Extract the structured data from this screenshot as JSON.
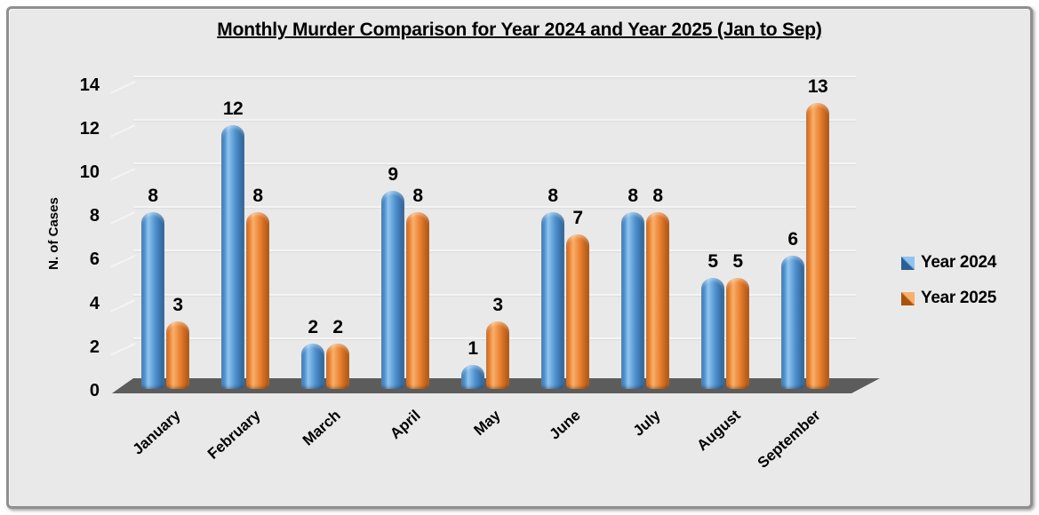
{
  "chart_data": {
    "type": "bar",
    "bar_style": "3d-cylinder",
    "title": "Monthly Murder Comparison for Year 2024 and Year 2025 (Jan to Sep)",
    "ylabel": "N. of Cases",
    "xlabel": "",
    "categories": [
      "January",
      "February",
      "March",
      "April",
      "May",
      "June",
      "July",
      "August",
      "September"
    ],
    "series": [
      {
        "name": "Year 2024",
        "values": [
          8,
          12,
          2,
          9,
          1,
          8,
          8,
          5,
          6
        ],
        "color": "#4e8ecb",
        "gradient": [
          "#3f7ab1",
          "#8ec4ef",
          "#4e8ecb",
          "#2b5f93"
        ]
      },
      {
        "name": "Year 2025",
        "values": [
          3,
          8,
          2,
          8,
          3,
          7,
          8,
          5,
          13
        ],
        "color": "#e87d2e",
        "gradient": [
          "#c96a1e",
          "#f8b06a",
          "#e87d2e",
          "#a85210"
        ]
      }
    ],
    "ylim": [
      0,
      14
    ],
    "yticks": [
      0,
      2,
      4,
      6,
      8,
      10,
      12,
      14
    ],
    "grid": true,
    "data_labels": true,
    "legend_position": "right",
    "colors": {
      "background": "#e9e9e9",
      "floor": "#5c5c5c",
      "gridline": "#f4f4f4",
      "text": "#000000"
    }
  }
}
